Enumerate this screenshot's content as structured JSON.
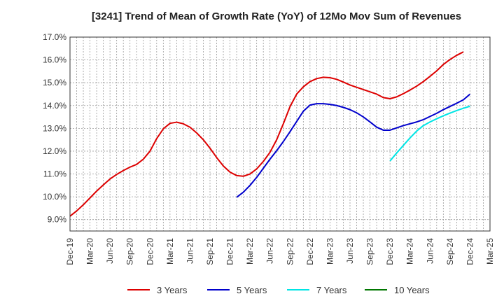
{
  "chart_data": {
    "type": "line",
    "title": "[3241]  Trend of Mean of Growth Rate (YoY) of 12Mo Mov Sum of Revenues",
    "xlabel": "",
    "ylabel": "",
    "ylim": [
      8.5,
      17.0
    ],
    "yticks": [
      "9.0%",
      "10.0%",
      "11.0%",
      "12.0%",
      "13.0%",
      "14.0%",
      "15.0%",
      "16.0%",
      "17.0%"
    ],
    "x_tick_labels": [
      "Dec-19",
      "Mar-20",
      "Jun-20",
      "Sep-20",
      "Dec-20",
      "Mar-21",
      "Jun-21",
      "Sep-21",
      "Dec-21",
      "Mar-22",
      "Jun-22",
      "Sep-22",
      "Dec-22",
      "Mar-23",
      "Jun-23",
      "Sep-23",
      "Dec-23",
      "Mar-24",
      "Jun-24",
      "Sep-24",
      "Dec-24",
      "Mar-25"
    ],
    "x_months": [
      "2019-12",
      "2020-01",
      "2020-02",
      "2020-03",
      "2020-04",
      "2020-05",
      "2020-06",
      "2020-07",
      "2020-08",
      "2020-09",
      "2020-10",
      "2020-11",
      "2020-12",
      "2021-01",
      "2021-02",
      "2021-03",
      "2021-04",
      "2021-05",
      "2021-06",
      "2021-07",
      "2021-08",
      "2021-09",
      "2021-10",
      "2021-11",
      "2021-12",
      "2022-01",
      "2022-02",
      "2022-03",
      "2022-04",
      "2022-05",
      "2022-06",
      "2022-07",
      "2022-08",
      "2022-09",
      "2022-10",
      "2022-11",
      "2022-12",
      "2023-01",
      "2023-02",
      "2023-03",
      "2023-04",
      "2023-05",
      "2023-06",
      "2023-07",
      "2023-08",
      "2023-09",
      "2023-10",
      "2023-11",
      "2023-12",
      "2024-01",
      "2024-02",
      "2024-03",
      "2024-04",
      "2024-05",
      "2024-06",
      "2024-07",
      "2024-08",
      "2024-09",
      "2024-10",
      "2024-11",
      "2024-12",
      "2025-01",
      "2025-02",
      "2025-03"
    ],
    "grid": true,
    "legend_position": "bottom",
    "series": [
      {
        "name": "3 Years",
        "color": "#dd0000",
        "values": [
          9.15,
          9.38,
          9.65,
          9.95,
          10.25,
          10.52,
          10.78,
          10.98,
          11.15,
          11.3,
          11.42,
          11.65,
          12.0,
          12.55,
          12.98,
          13.22,
          13.27,
          13.2,
          13.05,
          12.8,
          12.5,
          12.13,
          11.72,
          11.35,
          11.08,
          10.93,
          10.9,
          11.0,
          11.22,
          11.55,
          11.95,
          12.5,
          13.2,
          13.95,
          14.5,
          14.82,
          15.05,
          15.18,
          15.24,
          15.22,
          15.15,
          15.03,
          14.9,
          14.8,
          14.7,
          14.6,
          14.5,
          14.35,
          14.3,
          14.38,
          14.52,
          14.68,
          14.85,
          15.05,
          15.28,
          15.52,
          15.8,
          16.02,
          16.2,
          16.35,
          null,
          null,
          null,
          null
        ]
      },
      {
        "name": "5 Years",
        "color": "#0000cc",
        "values": [
          null,
          null,
          null,
          null,
          null,
          null,
          null,
          null,
          null,
          null,
          null,
          null,
          null,
          null,
          null,
          null,
          null,
          null,
          null,
          null,
          null,
          null,
          null,
          null,
          null,
          9.98,
          10.2,
          10.5,
          10.85,
          11.25,
          11.65,
          12.02,
          12.42,
          12.85,
          13.3,
          13.75,
          14.02,
          14.08,
          14.08,
          14.05,
          14.0,
          13.92,
          13.82,
          13.68,
          13.5,
          13.28,
          13.05,
          12.92,
          12.92,
          13.02,
          13.12,
          13.2,
          13.28,
          13.38,
          13.52,
          13.66,
          13.82,
          13.96,
          14.1,
          14.25,
          14.5,
          null,
          null,
          null
        ]
      },
      {
        "name": "7 Years",
        "color": "#00e5e5",
        "values": [
          null,
          null,
          null,
          null,
          null,
          null,
          null,
          null,
          null,
          null,
          null,
          null,
          null,
          null,
          null,
          null,
          null,
          null,
          null,
          null,
          null,
          null,
          null,
          null,
          null,
          null,
          null,
          null,
          null,
          null,
          null,
          null,
          null,
          null,
          null,
          null,
          null,
          null,
          null,
          null,
          null,
          null,
          null,
          null,
          null,
          null,
          null,
          null,
          11.57,
          11.92,
          12.25,
          12.58,
          12.88,
          13.12,
          13.28,
          13.42,
          13.55,
          13.67,
          13.78,
          13.88,
          13.97,
          null,
          null,
          null
        ]
      },
      {
        "name": "10 Years",
        "color": "#007700",
        "values": []
      }
    ]
  }
}
